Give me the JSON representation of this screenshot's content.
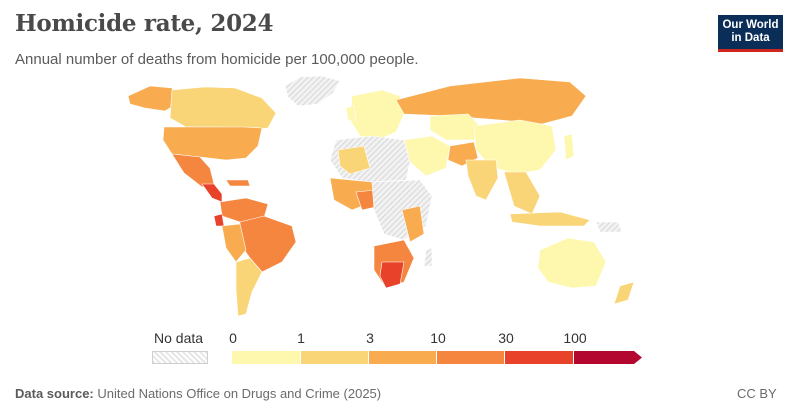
{
  "title": "Homicide rate, 2024",
  "subtitle": "Annual number of deaths from homicide per 100,000 people.",
  "logo": {
    "line1": "Our World",
    "line2": "in Data"
  },
  "legend": {
    "nodata_label": "No data",
    "ticks": [
      "0",
      "1",
      "3",
      "10",
      "30",
      "100"
    ],
    "bins": [
      {
        "from": "0",
        "to": "1",
        "color": "#fef7ae"
      },
      {
        "from": "1",
        "to": "3",
        "color": "#fad577"
      },
      {
        "from": "3",
        "to": "10",
        "color": "#f9ab4f"
      },
      {
        "from": "10",
        "to": "30",
        "color": "#f48640"
      },
      {
        "from": "30",
        "to": "100",
        "color": "#e8422b"
      },
      {
        "from": "100",
        "to": "",
        "color": "#b4072f"
      }
    ]
  },
  "footer": {
    "source_label": "Data source:",
    "source_text": "United Nations Office on Drugs and Crime (2025)",
    "license": "CC BY"
  },
  "colors": {
    "no_data": "#e6e6e6",
    "background": "#ffffff",
    "logo_bg": "#0b2e59",
    "logo_accent": "#ce261e"
  }
}
